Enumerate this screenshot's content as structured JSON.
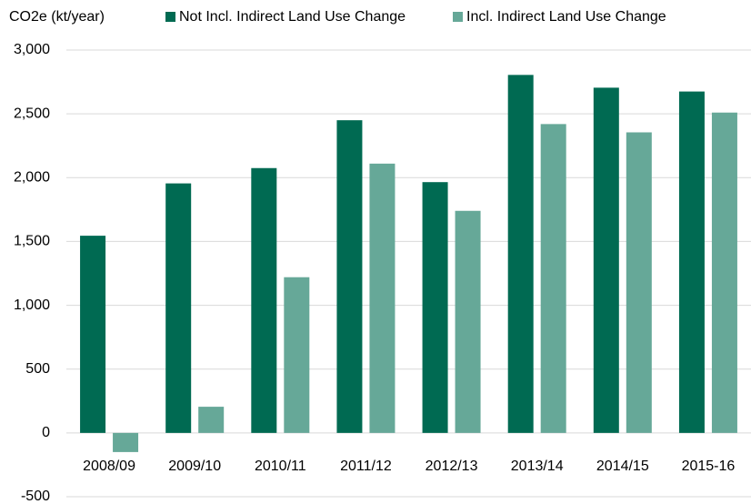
{
  "chart_data": {
    "type": "bar",
    "y_label": "CO2e (kt/year)",
    "categories": [
      "2008/09",
      "2009/10",
      "2010/11",
      "2011/12",
      "2012/13",
      "2013/14",
      "2014/15",
      "2015-16"
    ],
    "series": [
      {
        "name": "Not Incl. Indirect Land Use Change",
        "color": "#006a52",
        "values": [
          1545,
          1955,
          2075,
          2450,
          1965,
          2805,
          2705,
          2675
        ]
      },
      {
        "name": "Incl. Indirect Land Use Change",
        "color": "#66a898",
        "values": [
          -150,
          205,
          1220,
          2110,
          1740,
          2420,
          2355,
          2510
        ]
      }
    ],
    "ylim": [
      -500,
      3000
    ],
    "yticks": [
      -500,
      0,
      500,
      {
        "value": 1000,
        "label": "1,000"
      },
      {
        "value": 1500,
        "label": "1,500"
      },
      {
        "value": 2000,
        "label": "2,000"
      },
      {
        "value": 2500,
        "label": "2,500"
      },
      {
        "value": 3000,
        "label": "3,000"
      }
    ],
    "grid": true,
    "legend": "top"
  }
}
